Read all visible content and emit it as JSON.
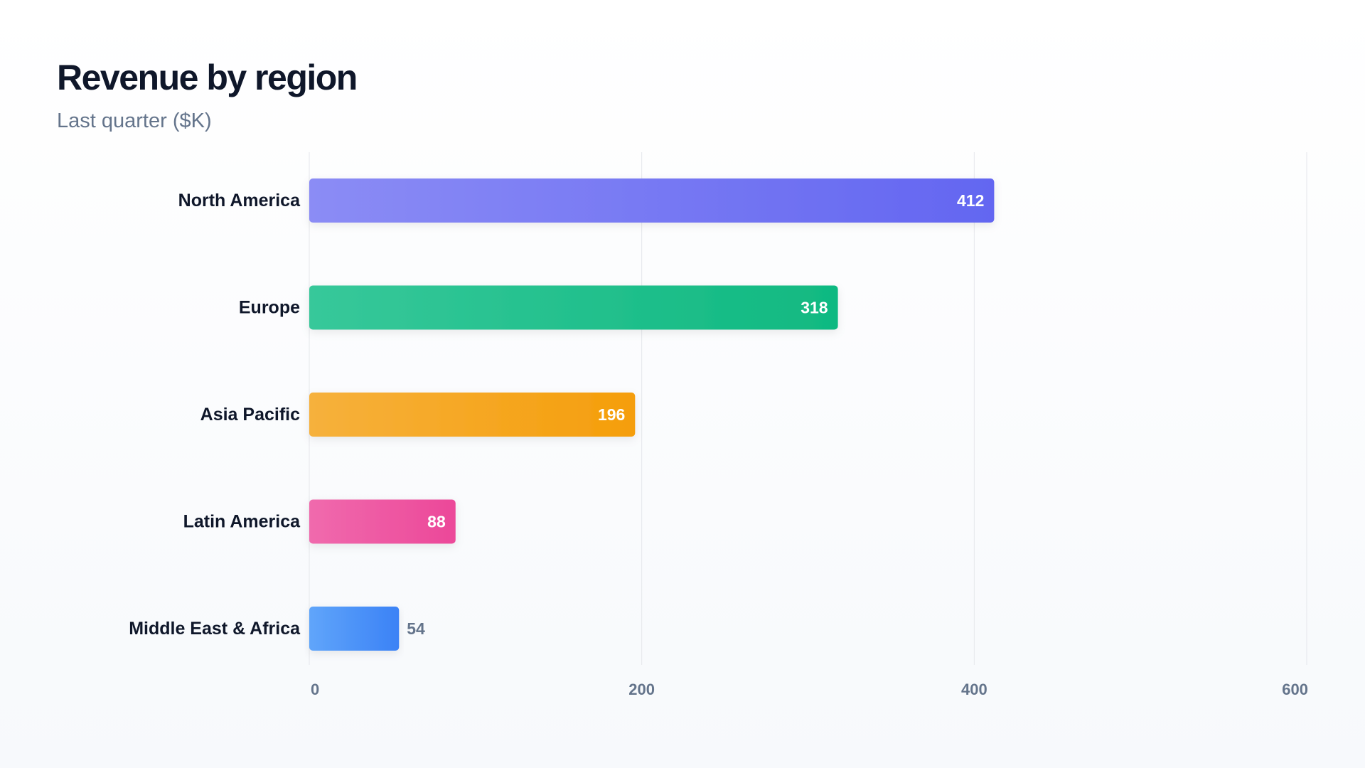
{
  "title": "Revenue by region",
  "subtitle": "Last quarter ($K)",
  "chart_data": {
    "type": "bar",
    "orientation": "horizontal",
    "categories": [
      "North America",
      "Europe",
      "Asia Pacific",
      "Latin America",
      "Middle East & Africa"
    ],
    "values": [
      412,
      318,
      196,
      88,
      54
    ],
    "xlim": [
      0,
      600
    ],
    "x_ticks": [
      "0",
      "200",
      "400",
      "600"
    ],
    "grid": true,
    "colors": {
      "North America": [
        "#8b8cf5",
        "#6366f1"
      ],
      "Europe": [
        "#37c89a",
        "#10b981"
      ],
      "Asia Pacific": [
        "#f6b13c",
        "#f59e0b"
      ],
      "Latin America": [
        "#f06aad",
        "#ec4899"
      ],
      "Middle East & Africa": [
        "#60a5fa",
        "#3b82f6"
      ]
    },
    "label_inside_color": "#ffffff",
    "label_outside_color": "#64748b",
    "category_label_color": "#0f172a",
    "tick_label_color": "#64748b",
    "grid_color": "#e5e7eb"
  }
}
